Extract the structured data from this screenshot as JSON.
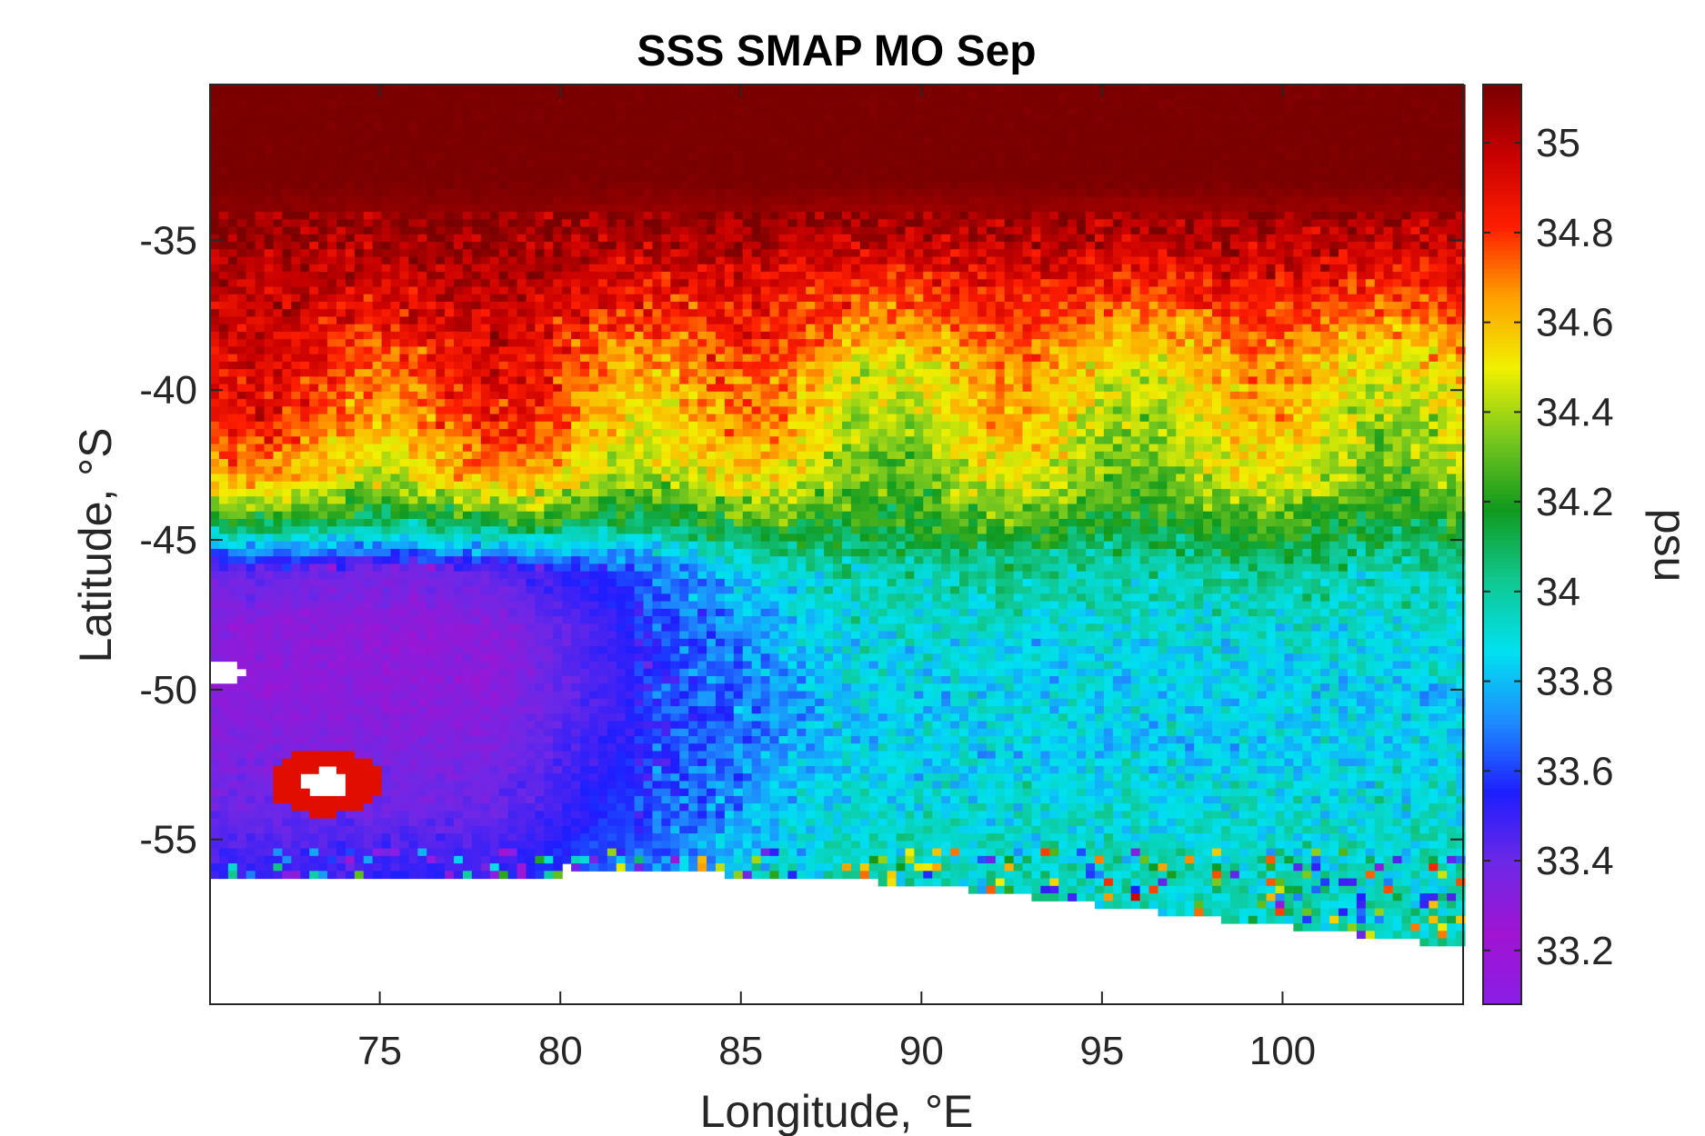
{
  "chart_data": {
    "type": "heatmap",
    "title": "SSS SMAP MO Sep",
    "xlabel": "Longitude, °E",
    "ylabel": "Latitude, °S",
    "colorbar_label": "psu",
    "xlim": [
      70.3,
      105.0
    ],
    "ylim": [
      -60.5,
      -29.8
    ],
    "xticks": [
      75,
      80,
      85,
      90,
      95,
      100
    ],
    "xtick_labels": [
      "75",
      "80",
      "85",
      "90",
      "95",
      "100"
    ],
    "yticks": [
      -35,
      -40,
      -45,
      -50,
      -55
    ],
    "ytick_labels": [
      "-35",
      "-40",
      "-45",
      "-50",
      "-55"
    ],
    "clim": [
      33.08,
      35.13
    ],
    "cticks": [
      33.2,
      33.4,
      33.6,
      33.8,
      34,
      34.2,
      34.4,
      34.6,
      34.8,
      35
    ],
    "ctick_labels": [
      "33.2",
      "33.4",
      "33.6",
      "33.8",
      "34",
      "34.2",
      "34.4",
      "34.6",
      "34.8",
      "35"
    ],
    "colormap": [
      "#8a1ee6",
      "#a014d2",
      "#6e28e6",
      "#1e1eff",
      "#1e8cff",
      "#00e1f0",
      "#10c890",
      "#109a1e",
      "#78c81e",
      "#f0f000",
      "#ffa000",
      "#ff1e00",
      "#c80000",
      "#7a0000"
    ],
    "grid": false,
    "legend": "colorbar-right",
    "latitude_profile": {
      "lat": [
        -30,
        -33,
        -35,
        -37,
        -39,
        -41,
        -43,
        -44.5,
        -46,
        -48,
        -50,
        -52,
        -54,
        -56
      ],
      "west_sss": [
        35.13,
        35.13,
        35.05,
        34.95,
        34.85,
        34.75,
        34.55,
        34.1,
        33.4,
        33.3,
        33.3,
        33.35,
        33.4,
        33.5
      ],
      "east_sss": [
        35.13,
        35.13,
        35.0,
        34.8,
        34.6,
        34.5,
        34.4,
        34.2,
        34.0,
        33.9,
        33.85,
        33.85,
        33.9,
        33.95
      ]
    }
  }
}
